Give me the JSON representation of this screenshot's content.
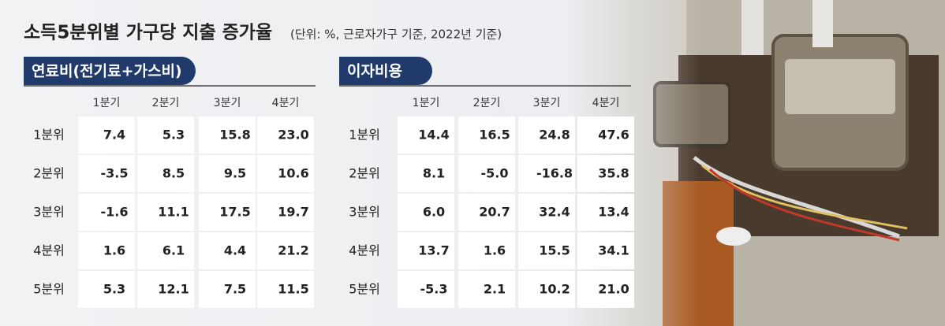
{
  "header": {
    "title": "소득5분위별 가구당 지출 증가율",
    "subtitle": "(단위: %, 근로자가구 기준, 2022년 기준)"
  },
  "tables": [
    {
      "label": "연료비(전기료+가스비)",
      "columns": [
        "1분기",
        "2분기",
        "3분기",
        "4분기"
      ],
      "rows": [
        {
          "name": "1분위",
          "cells": [
            "7.4",
            "5.3",
            "15.8",
            "23.0"
          ]
        },
        {
          "name": "2분위",
          "cells": [
            "-3.5",
            "8.5",
            "9.5",
            "10.6"
          ]
        },
        {
          "name": "3분위",
          "cells": [
            "-1.6",
            "11.1",
            "17.5",
            "19.7"
          ]
        },
        {
          "name": "4분위",
          "cells": [
            "1.6",
            "6.1",
            "4.4",
            "21.2"
          ]
        },
        {
          "name": "5분위",
          "cells": [
            "5.3",
            "12.1",
            "7.5",
            "11.5"
          ]
        }
      ]
    },
    {
      "label": "이자비용",
      "columns": [
        "1분기",
        "2분기",
        "3분기",
        "4분기"
      ],
      "rows": [
        {
          "name": "1분위",
          "cells": [
            "14.4",
            "16.5",
            "24.8",
            "47.6"
          ]
        },
        {
          "name": "2분위",
          "cells": [
            "8.1",
            "-5.0",
            "-16.8",
            "35.8"
          ]
        },
        {
          "name": "3분위",
          "cells": [
            "6.0",
            "20.7",
            "32.4",
            "13.4"
          ]
        },
        {
          "name": "4분위",
          "cells": [
            "13.7",
            "1.6",
            "15.5",
            "34.1"
          ]
        },
        {
          "name": "5분위",
          "cells": [
            "-5.3",
            "2.1",
            "10.2",
            "21.0"
          ]
        }
      ]
    }
  ]
}
